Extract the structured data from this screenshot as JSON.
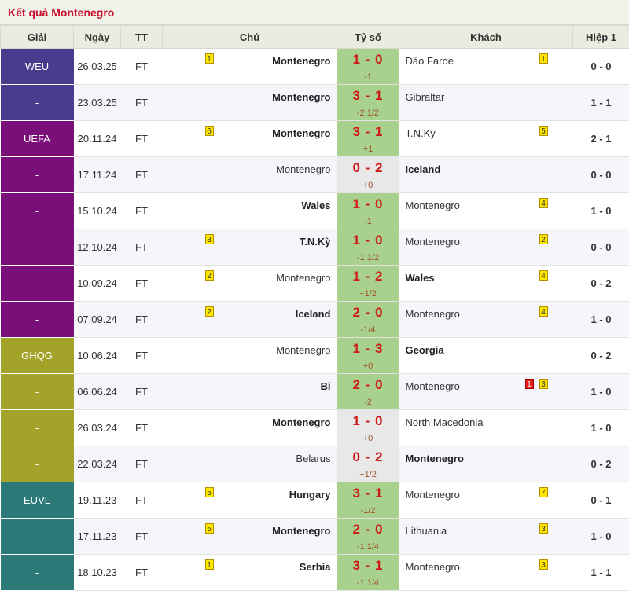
{
  "title": "Kết quả Montenegro",
  "headers": {
    "league": "Giải",
    "date": "Ngày",
    "status": "TT",
    "home": "Chủ",
    "score": "Tỷ số",
    "away": "Khách",
    "half": "Hiệp 1"
  },
  "rows": [
    {
      "league": "WEU",
      "league_color": "#4b3b8f",
      "date": "26.03.25",
      "status": "FT",
      "home": "Montenegro",
      "home_bold": true,
      "home_badge": "1",
      "score": "1 - 0",
      "handicap": "-1",
      "score_bg": "green",
      "away": "Đảo Faroe",
      "away_bold": false,
      "away_badges": [
        "1"
      ],
      "half": "0 - 0"
    },
    {
      "league": "-",
      "league_color": "#4b3b8f",
      "date": "23.03.25",
      "status": "FT",
      "home": "Montenegro",
      "home_bold": true,
      "home_badge": "",
      "score": "3 - 1",
      "handicap": "-2 1/2",
      "score_bg": "green",
      "away": "Gibraltar",
      "away_bold": false,
      "away_badges": [],
      "half": "1 - 1"
    },
    {
      "league": "UEFA",
      "league_color": "#7a0f7a",
      "date": "20.11.24",
      "status": "FT",
      "home": "Montenegro",
      "home_bold": true,
      "home_badge": "6",
      "score": "3 - 1",
      "handicap": "+1",
      "score_bg": "green",
      "away": "T.N.Kỳ",
      "away_bold": false,
      "away_badges": [
        "5"
      ],
      "half": "2 - 1"
    },
    {
      "league": "-",
      "league_color": "#7a0f7a",
      "date": "17.11.24",
      "status": "FT",
      "home": "Montenegro",
      "home_bold": false,
      "home_badge": "",
      "score": "0 - 2",
      "handicap": "+0",
      "score_bg": "grey",
      "away": "Iceland",
      "away_bold": true,
      "away_badges": [],
      "half": "0 - 0"
    },
    {
      "league": "-",
      "league_color": "#7a0f7a",
      "date": "15.10.24",
      "status": "FT",
      "home": "Wales",
      "home_bold": true,
      "home_badge": "",
      "score": "1 - 0",
      "handicap": "-1",
      "score_bg": "green",
      "away": "Montenegro",
      "away_bold": false,
      "away_badges": [
        "4"
      ],
      "half": "1 - 0"
    },
    {
      "league": "-",
      "league_color": "#7a0f7a",
      "date": "12.10.24",
      "status": "FT",
      "home": "T.N.Kỳ",
      "home_bold": true,
      "home_badge": "3",
      "score": "1 - 0",
      "handicap": "-1 1/2",
      "score_bg": "green",
      "away": "Montenegro",
      "away_bold": false,
      "away_badges": [
        "2"
      ],
      "half": "0 - 0"
    },
    {
      "league": "-",
      "league_color": "#7a0f7a",
      "date": "10.09.24",
      "status": "FT",
      "home": "Montenegro",
      "home_bold": false,
      "home_badge": "2",
      "score": "1 - 2",
      "handicap": "+1/2",
      "score_bg": "green",
      "away": "Wales",
      "away_bold": true,
      "away_badges": [
        "4"
      ],
      "half": "0 - 2"
    },
    {
      "league": "-",
      "league_color": "#7a0f7a",
      "date": "07.09.24",
      "status": "FT",
      "home": "Iceland",
      "home_bold": true,
      "home_badge": "2",
      "score": "2 - 0",
      "handicap": "-1/4",
      "score_bg": "green",
      "away": "Montenegro",
      "away_bold": false,
      "away_badges": [
        "4"
      ],
      "half": "1 - 0"
    },
    {
      "league": "GHQG",
      "league_color": "#a3a32a",
      "date": "10.06.24",
      "status": "FT",
      "home": "Montenegro",
      "home_bold": false,
      "home_badge": "",
      "score": "1 - 3",
      "handicap": "+0",
      "score_bg": "green",
      "away": "Georgia",
      "away_bold": true,
      "away_badges": [],
      "half": "0 - 2"
    },
    {
      "league": "-",
      "league_color": "#a3a32a",
      "date": "06.06.24",
      "status": "FT",
      "home": "Bỉ",
      "home_bold": true,
      "home_badge": "",
      "score": "2 - 0",
      "handicap": "-2",
      "score_bg": "green",
      "away": "Montenegro",
      "away_bold": false,
      "away_badges": [
        "1r",
        "3"
      ],
      "half": "1 - 0"
    },
    {
      "league": "-",
      "league_color": "#a3a32a",
      "date": "26.03.24",
      "status": "FT",
      "home": "Montenegro",
      "home_bold": true,
      "home_badge": "",
      "score": "1 - 0",
      "handicap": "+0",
      "score_bg": "grey",
      "away": "North Macedonia",
      "away_bold": false,
      "away_badges": [],
      "half": "1 - 0"
    },
    {
      "league": "-",
      "league_color": "#a3a32a",
      "date": "22.03.24",
      "status": "FT",
      "home": "Belarus",
      "home_bold": false,
      "home_badge": "",
      "score": "0 - 2",
      "handicap": "+1/2",
      "score_bg": "grey",
      "away": "Montenegro",
      "away_bold": true,
      "away_badges": [],
      "half": "0 - 2"
    },
    {
      "league": "EUVL",
      "league_color": "#2b7a78",
      "date": "19.11.23",
      "status": "FT",
      "home": "Hungary",
      "home_bold": true,
      "home_badge": "5",
      "score": "3 - 1",
      "handicap": "-1/2",
      "score_bg": "green",
      "away": "Montenegro",
      "away_bold": false,
      "away_badges": [
        "7"
      ],
      "half": "0 - 1"
    },
    {
      "league": "-",
      "league_color": "#2b7a78",
      "date": "17.11.23",
      "status": "FT",
      "home": "Montenegro",
      "home_bold": true,
      "home_badge": "5",
      "score": "2 - 0",
      "handicap": "-1 1/4",
      "score_bg": "green",
      "away": "Lithuania",
      "away_bold": false,
      "away_badges": [
        "3"
      ],
      "half": "1 - 0"
    },
    {
      "league": "-",
      "league_color": "#2b7a78",
      "date": "18.10.23",
      "status": "FT",
      "home": "Serbia",
      "home_bold": true,
      "home_badge": "1",
      "score": "3 - 1",
      "handicap": "-1 1/4",
      "score_bg": "green",
      "away": "Montenegro",
      "away_bold": false,
      "away_badges": [
        "3"
      ],
      "half": "1 - 1"
    }
  ]
}
